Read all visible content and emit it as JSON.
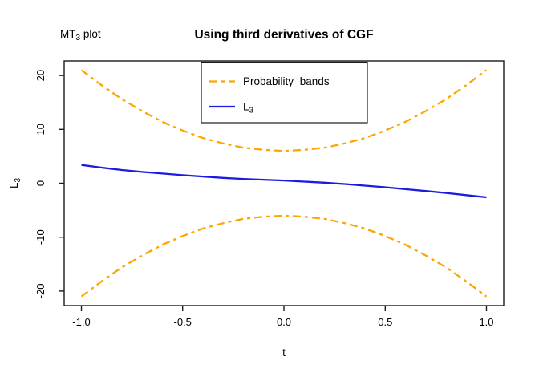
{
  "header": {
    "plot_type": {
      "pre": "MT",
      "sub": "3",
      "post": " plot"
    },
    "title": "Using third derivatives of CGF"
  },
  "legend": {
    "band_label": "Probability bands",
    "l3_label": {
      "pre": "L",
      "sub": "3"
    }
  },
  "chart_data": {
    "type": "line",
    "title": "Using third derivatives of CGF",
    "corner_label": "MT3 plot",
    "xlabel": "t",
    "ylabel": {
      "pre": "L",
      "sub": "3"
    },
    "xlim": [
      -1.085,
      1.085
    ],
    "ylim": [
      -22.7,
      22.7
    ],
    "xticks": [
      -1.0,
      -0.5,
      0.0,
      0.5,
      1.0
    ],
    "xtick_labels": [
      "-1.0",
      "-0.5",
      "0.0",
      "0.5",
      "1.0"
    ],
    "yticks": [
      -20,
      -10,
      0,
      10,
      20
    ],
    "ytick_labels": [
      "-20",
      "-10",
      "0",
      "10",
      "20"
    ],
    "grid": false,
    "legend_position": "top-center",
    "colors": {
      "band": "#ffa500",
      "l3": "#1c1ce0"
    },
    "series": [
      {
        "name": "upper_probability_band",
        "legend": "Probability bands",
        "color": "#ffa500",
        "style": "dashdot",
        "x": [
          -1.0,
          -0.9,
          -0.8,
          -0.7,
          -0.6,
          -0.5,
          -0.4,
          -0.3,
          -0.2,
          -0.1,
          0.0,
          0.1,
          0.2,
          0.3,
          0.4,
          0.5,
          0.6,
          0.7,
          0.8,
          0.9,
          1.0
        ],
        "y": [
          21.0,
          18.2,
          15.6,
          13.4,
          11.4,
          9.8,
          8.4,
          7.4,
          6.6,
          6.2,
          6.0,
          6.2,
          6.6,
          7.4,
          8.4,
          9.8,
          11.4,
          13.4,
          15.6,
          18.2,
          21.0
        ]
      },
      {
        "name": "L3",
        "legend": "L3",
        "color": "#1c1ce0",
        "style": "solid",
        "x": [
          -1.0,
          -0.9,
          -0.8,
          -0.7,
          -0.6,
          -0.5,
          -0.4,
          -0.3,
          -0.2,
          -0.1,
          0.0,
          0.1,
          0.2,
          0.3,
          0.4,
          0.5,
          0.6,
          0.7,
          0.8,
          0.9,
          1.0
        ],
        "y": [
          3.4,
          2.9,
          2.45,
          2.1,
          1.8,
          1.5,
          1.25,
          1.0,
          0.8,
          0.65,
          0.5,
          0.3,
          0.1,
          -0.15,
          -0.45,
          -0.75,
          -1.1,
          -1.45,
          -1.8,
          -2.2,
          -2.6
        ]
      },
      {
        "name": "lower_probability_band",
        "legend": "Probability bands",
        "color": "#ffa500",
        "style": "dashdot",
        "x": [
          -1.0,
          -0.9,
          -0.8,
          -0.7,
          -0.6,
          -0.5,
          -0.4,
          -0.3,
          -0.2,
          -0.1,
          0.0,
          0.1,
          0.2,
          0.3,
          0.4,
          0.5,
          0.6,
          0.7,
          0.8,
          0.9,
          1.0
        ],
        "y": [
          -21.0,
          -18.2,
          -15.6,
          -13.4,
          -11.4,
          -9.8,
          -8.4,
          -7.4,
          -6.6,
          -6.2,
          -6.0,
          -6.2,
          -6.6,
          -7.4,
          -8.4,
          -9.8,
          -11.4,
          -13.4,
          -15.6,
          -18.2,
          -21.0
        ]
      }
    ]
  }
}
